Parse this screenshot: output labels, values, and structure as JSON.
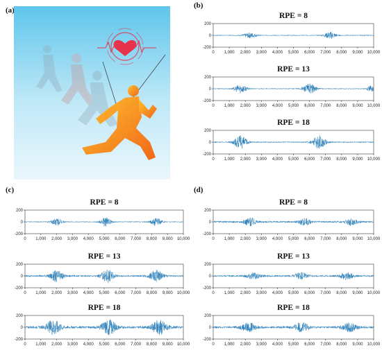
{
  "figure": {
    "panels": [
      {
        "label": "(a)"
      },
      {
        "label": "(b)"
      },
      {
        "label": "(c)"
      },
      {
        "label": "(d)"
      }
    ]
  },
  "colors": {
    "signal": "#1f77b4",
    "heart": "#e8344a",
    "runner": "#f39a1e"
  },
  "chart_data": [
    {
      "panel": "b",
      "type": "line",
      "title": "RPE = 8",
      "xlim": [
        0,
        10000
      ],
      "ylim": [
        -200,
        200
      ],
      "xticks": [
        "0",
        "1,000",
        "2,000",
        "3,000",
        "4,000",
        "5,000",
        "6,000",
        "7,000",
        "8,000",
        "9,000",
        "10,000"
      ],
      "yticks": [
        "200",
        "0",
        "-200"
      ],
      "bursts": [
        {
          "center": 2300,
          "width": 500,
          "amplitude": 40
        },
        {
          "center": 7300,
          "width": 450,
          "amplitude": 55
        }
      ],
      "baseline_noise": 8
    },
    {
      "panel": "b",
      "type": "line",
      "title": "RPE = 13",
      "xlim": [
        0,
        10000
      ],
      "ylim": [
        -200,
        200
      ],
      "xticks": [
        "0",
        "1,000",
        "2,000",
        "3,000",
        "4,000",
        "5,000",
        "6,000",
        "7,000",
        "8,000",
        "9,000",
        "10,000"
      ],
      "yticks": [
        "200",
        "0",
        "-200"
      ],
      "bursts": [
        {
          "center": 1700,
          "width": 450,
          "amplitude": 70
        },
        {
          "center": 6000,
          "width": 500,
          "amplitude": 80
        },
        {
          "center": 9800,
          "width": 300,
          "amplitude": 45
        }
      ],
      "baseline_noise": 8
    },
    {
      "panel": "b",
      "type": "line",
      "title": "RPE = 18",
      "xlim": [
        0,
        10000
      ],
      "ylim": [
        -200,
        200
      ],
      "xticks": [
        "0",
        "1,000",
        "2,000",
        "3,000",
        "4,000",
        "5,000",
        "6,000",
        "7,000",
        "8,000",
        "9,000",
        "10,000"
      ],
      "yticks": [
        "200",
        "0",
        "-200"
      ],
      "bursts": [
        {
          "center": 1700,
          "width": 500,
          "amplitude": 105
        },
        {
          "center": 6600,
          "width": 500,
          "amplitude": 110
        }
      ],
      "baseline_noise": 10
    },
    {
      "panel": "c",
      "type": "line",
      "title": "RPE = 8",
      "xlim": [
        0,
        10000
      ],
      "ylim": [
        -200,
        200
      ],
      "xticks": [
        "0",
        "1,000",
        "2,000",
        "3,000",
        "4,000",
        "5,000",
        "6,000",
        "7,000",
        "8,000",
        "9,000",
        "10,000"
      ],
      "yticks": [
        "200",
        "0",
        "-200"
      ],
      "bursts": [
        {
          "center": 2000,
          "width": 450,
          "amplitude": 60
        },
        {
          "center": 5100,
          "width": 400,
          "amplitude": 75
        },
        {
          "center": 8300,
          "width": 450,
          "amplitude": 60
        }
      ],
      "baseline_noise": 8
    },
    {
      "panel": "c",
      "type": "line",
      "title": "RPE = 13",
      "xlim": [
        0,
        10000
      ],
      "ylim": [
        -200,
        200
      ],
      "xticks": [
        "0",
        "1,000",
        "2,000",
        "3,000",
        "4,000",
        "5,000",
        "6,000",
        "7,000",
        "8,000",
        "9,000",
        "10,000"
      ],
      "yticks": [
        "200",
        "0",
        "-200"
      ],
      "bursts": [
        {
          "center": 2000,
          "width": 500,
          "amplitude": 90
        },
        {
          "center": 5200,
          "width": 450,
          "amplitude": 110
        },
        {
          "center": 8300,
          "width": 500,
          "amplitude": 95
        }
      ],
      "baseline_noise": 15
    },
    {
      "panel": "c",
      "type": "line",
      "title": "RPE = 18",
      "xlim": [
        0,
        10000
      ],
      "ylim": [
        -200,
        200
      ],
      "xticks": [
        "0",
        "1,000",
        "2,000",
        "3,000",
        "4,000",
        "5,000",
        "6,000",
        "7,000",
        "8,000",
        "9,000",
        "10,000"
      ],
      "yticks": [
        "200",
        "0",
        "-200"
      ],
      "bursts": [
        {
          "center": 1800,
          "width": 550,
          "amplitude": 120
        },
        {
          "center": 5300,
          "width": 550,
          "amplitude": 125
        },
        {
          "center": 8500,
          "width": 550,
          "amplitude": 120
        }
      ],
      "baseline_noise": 20
    },
    {
      "panel": "d",
      "type": "line",
      "title": "RPE = 8",
      "xlim": [
        0,
        10000
      ],
      "ylim": [
        -200,
        200
      ],
      "xticks": [
        "0",
        "1,000",
        "2,000",
        "3,000",
        "4,000",
        "5,000",
        "6,000",
        "7,000",
        "8,000",
        "9,000",
        "10,000"
      ],
      "yticks": [
        "200",
        "0",
        "-200"
      ],
      "bursts": [
        {
          "center": 2300,
          "width": 450,
          "amplitude": 65
        },
        {
          "center": 5700,
          "width": 450,
          "amplitude": 55
        },
        {
          "center": 8600,
          "width": 450,
          "amplitude": 55
        }
      ],
      "baseline_noise": 15
    },
    {
      "panel": "d",
      "type": "line",
      "title": "RPE = 13",
      "xlim": [
        0,
        10000
      ],
      "ylim": [
        -200,
        200
      ],
      "xticks": [
        "0",
        "1,000",
        "2,000",
        "3,000",
        "4,000",
        "5,000",
        "6,000",
        "7,000",
        "8,000",
        "9,000",
        "10,000"
      ],
      "yticks": [
        "200",
        "0",
        "-200"
      ],
      "bursts": [
        {
          "center": 2500,
          "width": 500,
          "amplitude": 50
        },
        {
          "center": 5500,
          "width": 500,
          "amplitude": 55
        },
        {
          "center": 8300,
          "width": 500,
          "amplitude": 55
        }
      ],
      "baseline_noise": 15
    },
    {
      "panel": "d",
      "type": "line",
      "title": "RPE = 18",
      "xlim": [
        0,
        10000
      ],
      "ylim": [
        -200,
        200
      ],
      "xticks": [
        "0",
        "1,000",
        "2,000",
        "3,000",
        "4,000",
        "5,000",
        "6,000",
        "7,000",
        "8,000",
        "9,000",
        "10,000"
      ],
      "yticks": [
        "200",
        "0",
        "-200"
      ],
      "bursts": [
        {
          "center": 2200,
          "width": 600,
          "amplitude": 65
        },
        {
          "center": 5500,
          "width": 600,
          "amplitude": 70
        },
        {
          "center": 8500,
          "width": 600,
          "amplitude": 65
        }
      ],
      "baseline_noise": 18
    }
  ]
}
